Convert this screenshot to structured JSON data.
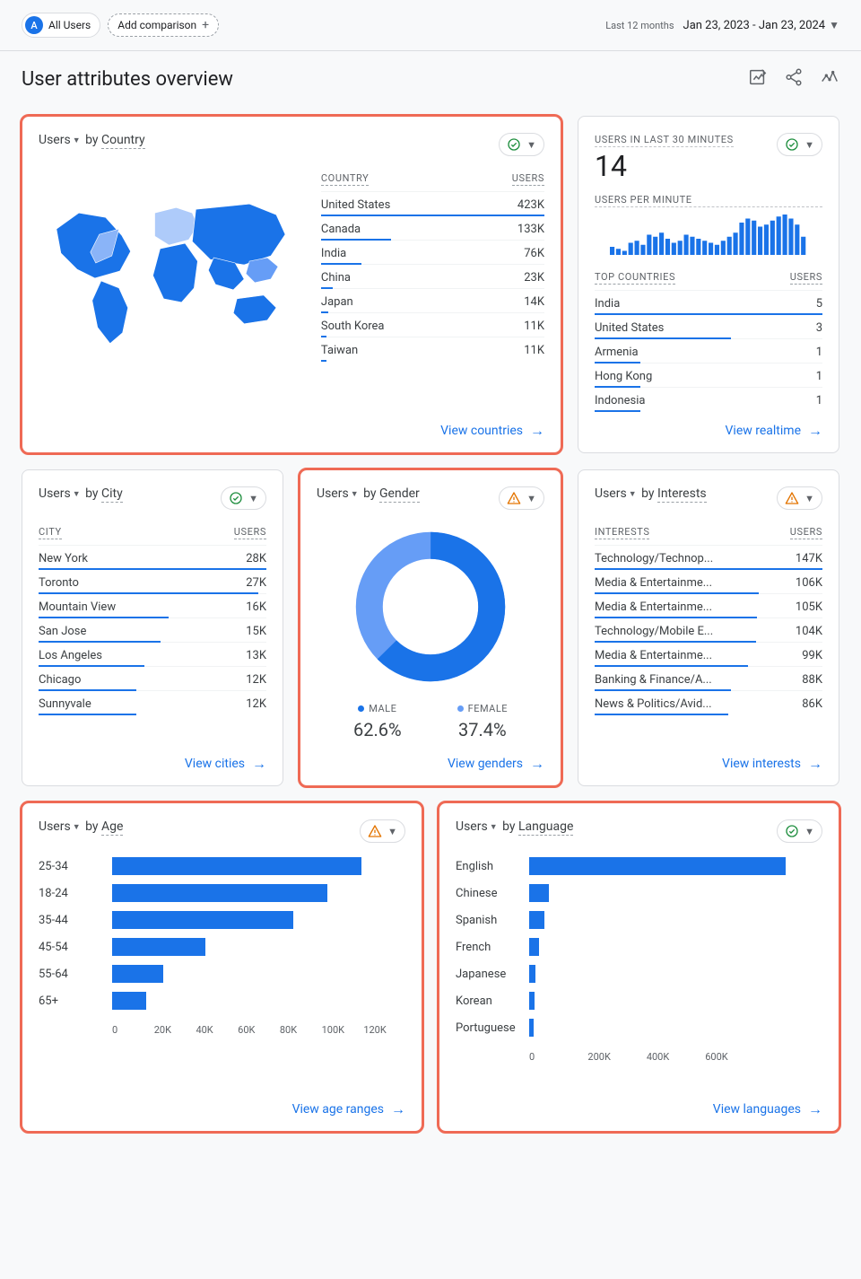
{
  "colors": {
    "primary": "#1a73e8",
    "primaryLight": "#669df6",
    "highlight": "#ef6a55",
    "text": "#3c4043",
    "muted": "#5f6368",
    "border": "#dadce0"
  },
  "topbar": {
    "segmentBadge": "A",
    "segmentLabel": "All Users",
    "addComparison": "Add comparison",
    "rangeLabel": "Last 12 months",
    "rangeValue": "Jan 23, 2023 - Jan 23, 2024"
  },
  "title": "User attributes overview",
  "usersLabel": "Users",
  "byLabel": "by",
  "cards": {
    "country": {
      "dimension": "Country",
      "status": "ok",
      "headerDimLabel": "COUNTRY",
      "headerValLabel": "USERS",
      "maxValue": 423000,
      "rows": [
        {
          "label": "United States",
          "valLabel": "423K",
          "value": 423000
        },
        {
          "label": "Canada",
          "valLabel": "133K",
          "value": 133000
        },
        {
          "label": "India",
          "valLabel": "76K",
          "value": 76000
        },
        {
          "label": "China",
          "valLabel": "23K",
          "value": 23000
        },
        {
          "label": "Japan",
          "valLabel": "14K",
          "value": 14000
        },
        {
          "label": "South Korea",
          "valLabel": "11K",
          "value": 11000
        },
        {
          "label": "Taiwan",
          "valLabel": "11K",
          "value": 11000
        }
      ],
      "link": "View countries"
    },
    "realtime": {
      "title": "USERS IN LAST 30 MINUTES",
      "status": "ok",
      "bigValue": "14",
      "perMinLabel": "USERS PER MINUTE",
      "spark": [
        4,
        3,
        2,
        6,
        7,
        5,
        10,
        9,
        11,
        8,
        6,
        7,
        10,
        9,
        8,
        7,
        6,
        5,
        7,
        9,
        11,
        16,
        18,
        17,
        14,
        15,
        17,
        19,
        20,
        18,
        15,
        9
      ],
      "topHeadDim": "TOP COUNTRIES",
      "topHeadVal": "USERS",
      "maxValue": 5,
      "rows": [
        {
          "label": "India",
          "valLabel": "5",
          "value": 5
        },
        {
          "label": "United States",
          "valLabel": "3",
          "value": 3
        },
        {
          "label": "Armenia",
          "valLabel": "1",
          "value": 1
        },
        {
          "label": "Hong Kong",
          "valLabel": "1",
          "value": 1
        },
        {
          "label": "Indonesia",
          "valLabel": "1",
          "value": 1
        }
      ],
      "link": "View realtime"
    },
    "city": {
      "dimension": "City",
      "status": "ok",
      "headerDimLabel": "CITY",
      "headerValLabel": "USERS",
      "maxValue": 28000,
      "rows": [
        {
          "label": "New York",
          "valLabel": "28K",
          "value": 28000
        },
        {
          "label": "Toronto",
          "valLabel": "27K",
          "value": 27000
        },
        {
          "label": "Mountain View",
          "valLabel": "16K",
          "value": 16000
        },
        {
          "label": "San Jose",
          "valLabel": "15K",
          "value": 15000
        },
        {
          "label": "Los Angeles",
          "valLabel": "13K",
          "value": 13000
        },
        {
          "label": "Chicago",
          "valLabel": "12K",
          "value": 12000
        },
        {
          "label": "Sunnyvale",
          "valLabel": "12K",
          "value": 12000
        }
      ],
      "link": "View cities"
    },
    "gender": {
      "dimension": "Gender",
      "status": "warn",
      "type": "donut",
      "series": [
        {
          "key": "MALE",
          "pctLabel": "62.6%",
          "pct": 62.6,
          "color": "#1a73e8"
        },
        {
          "key": "FEMALE",
          "pctLabel": "37.4%",
          "pct": 37.4,
          "color": "#669df6"
        }
      ],
      "link": "View genders"
    },
    "interests": {
      "dimension": "Interests",
      "status": "warn",
      "headerDimLabel": "INTERESTS",
      "headerValLabel": "USERS",
      "maxValue": 147000,
      "rows": [
        {
          "label": "Technology/Technop...",
          "valLabel": "147K",
          "value": 147000
        },
        {
          "label": "Media & Entertainme...",
          "valLabel": "106K",
          "value": 106000
        },
        {
          "label": "Media & Entertainme...",
          "valLabel": "105K",
          "value": 105000
        },
        {
          "label": "Technology/Mobile E...",
          "valLabel": "104K",
          "value": 104000
        },
        {
          "label": "Media & Entertainme...",
          "valLabel": "99K",
          "value": 99000
        },
        {
          "label": "Banking & Finance/A...",
          "valLabel": "88K",
          "value": 88000
        },
        {
          "label": "News & Politics/Avid...",
          "valLabel": "86K",
          "value": 86000
        }
      ],
      "link": "View interests"
    },
    "age": {
      "dimension": "Age",
      "status": "warn",
      "type": "hbar",
      "maxTick": 120000,
      "ticks": [
        "0",
        "20K",
        "40K",
        "60K",
        "80K",
        "100K",
        "120K"
      ],
      "rows": [
        {
          "label": "25-34",
          "value": 102000
        },
        {
          "label": "18-24",
          "value": 88000
        },
        {
          "label": "35-44",
          "value": 74000
        },
        {
          "label": "45-54",
          "value": 38000
        },
        {
          "label": "55-64",
          "value": 21000
        },
        {
          "label": "65+",
          "value": 14000
        }
      ],
      "link": "View age ranges"
    },
    "language": {
      "dimension": "Language",
      "status": "ok",
      "type": "hbar",
      "maxTick": 800000,
      "ticks": [
        "0",
        "200K",
        "400K",
        "600K",
        ""
      ],
      "rows": [
        {
          "label": "English",
          "value": 700000
        },
        {
          "label": "Chinese",
          "value": 55000
        },
        {
          "label": "Spanish",
          "value": 42000
        },
        {
          "label": "French",
          "value": 28000
        },
        {
          "label": "Japanese",
          "value": 18000
        },
        {
          "label": "Korean",
          "value": 15000
        },
        {
          "label": "Portuguese",
          "value": 12000
        }
      ],
      "link": "View languages"
    }
  }
}
